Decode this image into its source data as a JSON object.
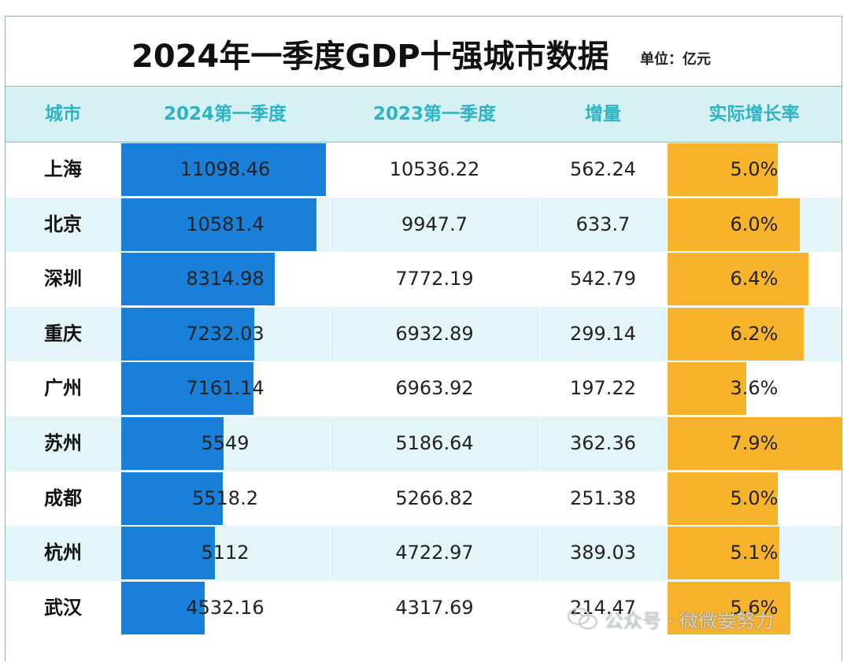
{
  "title": "2024年一季度GDP十强城市数据",
  "unit": "单位：亿元",
  "headers": {
    "city": "城市",
    "q1_2024": "2024第一季度",
    "q1_2023": "2023第一季度",
    "increase": "增量",
    "growth": "实际增长率"
  },
  "colors": {
    "gdp_bar": "#1a7fd9",
    "growth_bar": "#f7b32b",
    "header_text": "#2fb3c3",
    "header_bg": "#d6f1f4",
    "alt_row": "#e3f5f8"
  },
  "watermark": "公众号 · 微微妛努力",
  "watermark_icon": "wechat-icon",
  "chart_data": {
    "type": "table",
    "title": "2024年一季度GDP十强城市数据",
    "unit": "单位：亿元",
    "rows": [
      {
        "city": "上海",
        "q1_2024": "11098.46",
        "q1_2023": "10536.22",
        "increase": "562.24",
        "growth": "5.0%",
        "gdp_value": 11098.46,
        "growth_value": 5.0
      },
      {
        "city": "北京",
        "q1_2024": "10581.4",
        "q1_2023": "9947.7",
        "increase": "633.7",
        "growth": "6.0%",
        "gdp_value": 10581.4,
        "growth_value": 6.0
      },
      {
        "city": "深圳",
        "q1_2024": "8314.98",
        "q1_2023": "7772.19",
        "increase": "542.79",
        "growth": "6.4%",
        "gdp_value": 8314.98,
        "growth_value": 6.4
      },
      {
        "city": "重庆",
        "q1_2024": "7232.03",
        "q1_2023": "6932.89",
        "increase": "299.14",
        "growth": "6.2%",
        "gdp_value": 7232.03,
        "growth_value": 6.2
      },
      {
        "city": "广州",
        "q1_2024": "7161.14",
        "q1_2023": "6963.92",
        "increase": "197.22",
        "growth": "3.6%",
        "gdp_value": 7161.14,
        "growth_value": 3.6
      },
      {
        "city": "苏州",
        "q1_2024": "5549",
        "q1_2023": "5186.64",
        "increase": "362.36",
        "growth": "7.9%",
        "gdp_value": 5549,
        "growth_value": 7.9
      },
      {
        "city": "成都",
        "q1_2024": "5518.2",
        "q1_2023": "5266.82",
        "increase": "251.38",
        "growth": "5.0%",
        "gdp_value": 5518.2,
        "growth_value": 5.0
      },
      {
        "city": "杭州",
        "q1_2024": "5112",
        "q1_2023": "4722.97",
        "increase": "389.03",
        "growth": "5.1%",
        "gdp_value": 5112,
        "growth_value": 5.1
      },
      {
        "city": "武汉",
        "q1_2024": "4532.16",
        "q1_2023": "4317.69",
        "increase": "214.47",
        "growth": "5.6%",
        "gdp_value": 4532.16,
        "growth_value": 5.6
      }
    ]
  }
}
